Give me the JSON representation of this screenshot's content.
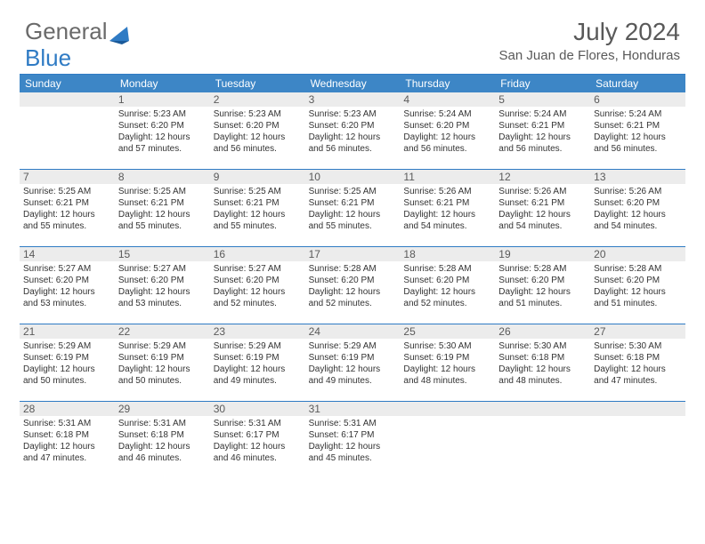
{
  "logo": {
    "text1": "General",
    "text2": "Blue"
  },
  "title": "July 2024",
  "location": "San Juan de Flores, Honduras",
  "colors": {
    "header_bg": "#3d86c6",
    "border": "#2f7bc4",
    "daynum_bg": "#ececec",
    "text_gray": "#595959"
  },
  "weekdays": [
    "Sunday",
    "Monday",
    "Tuesday",
    "Wednesday",
    "Thursday",
    "Friday",
    "Saturday"
  ],
  "weeks": [
    [
      null,
      {
        "n": "1",
        "sr": "5:23 AM",
        "ss": "6:20 PM",
        "dl": "12 hours and 57 minutes."
      },
      {
        "n": "2",
        "sr": "5:23 AM",
        "ss": "6:20 PM",
        "dl": "12 hours and 56 minutes."
      },
      {
        "n": "3",
        "sr": "5:23 AM",
        "ss": "6:20 PM",
        "dl": "12 hours and 56 minutes."
      },
      {
        "n": "4",
        "sr": "5:24 AM",
        "ss": "6:20 PM",
        "dl": "12 hours and 56 minutes."
      },
      {
        "n": "5",
        "sr": "5:24 AM",
        "ss": "6:21 PM",
        "dl": "12 hours and 56 minutes."
      },
      {
        "n": "6",
        "sr": "5:24 AM",
        "ss": "6:21 PM",
        "dl": "12 hours and 56 minutes."
      }
    ],
    [
      {
        "n": "7",
        "sr": "5:25 AM",
        "ss": "6:21 PM",
        "dl": "12 hours and 55 minutes."
      },
      {
        "n": "8",
        "sr": "5:25 AM",
        "ss": "6:21 PM",
        "dl": "12 hours and 55 minutes."
      },
      {
        "n": "9",
        "sr": "5:25 AM",
        "ss": "6:21 PM",
        "dl": "12 hours and 55 minutes."
      },
      {
        "n": "10",
        "sr": "5:25 AM",
        "ss": "6:21 PM",
        "dl": "12 hours and 55 minutes."
      },
      {
        "n": "11",
        "sr": "5:26 AM",
        "ss": "6:21 PM",
        "dl": "12 hours and 54 minutes."
      },
      {
        "n": "12",
        "sr": "5:26 AM",
        "ss": "6:21 PM",
        "dl": "12 hours and 54 minutes."
      },
      {
        "n": "13",
        "sr": "5:26 AM",
        "ss": "6:20 PM",
        "dl": "12 hours and 54 minutes."
      }
    ],
    [
      {
        "n": "14",
        "sr": "5:27 AM",
        "ss": "6:20 PM",
        "dl": "12 hours and 53 minutes."
      },
      {
        "n": "15",
        "sr": "5:27 AM",
        "ss": "6:20 PM",
        "dl": "12 hours and 53 minutes."
      },
      {
        "n": "16",
        "sr": "5:27 AM",
        "ss": "6:20 PM",
        "dl": "12 hours and 52 minutes."
      },
      {
        "n": "17",
        "sr": "5:28 AM",
        "ss": "6:20 PM",
        "dl": "12 hours and 52 minutes."
      },
      {
        "n": "18",
        "sr": "5:28 AM",
        "ss": "6:20 PM",
        "dl": "12 hours and 52 minutes."
      },
      {
        "n": "19",
        "sr": "5:28 AM",
        "ss": "6:20 PM",
        "dl": "12 hours and 51 minutes."
      },
      {
        "n": "20",
        "sr": "5:28 AM",
        "ss": "6:20 PM",
        "dl": "12 hours and 51 minutes."
      }
    ],
    [
      {
        "n": "21",
        "sr": "5:29 AM",
        "ss": "6:19 PM",
        "dl": "12 hours and 50 minutes."
      },
      {
        "n": "22",
        "sr": "5:29 AM",
        "ss": "6:19 PM",
        "dl": "12 hours and 50 minutes."
      },
      {
        "n": "23",
        "sr": "5:29 AM",
        "ss": "6:19 PM",
        "dl": "12 hours and 49 minutes."
      },
      {
        "n": "24",
        "sr": "5:29 AM",
        "ss": "6:19 PM",
        "dl": "12 hours and 49 minutes."
      },
      {
        "n": "25",
        "sr": "5:30 AM",
        "ss": "6:19 PM",
        "dl": "12 hours and 48 minutes."
      },
      {
        "n": "26",
        "sr": "5:30 AM",
        "ss": "6:18 PM",
        "dl": "12 hours and 48 minutes."
      },
      {
        "n": "27",
        "sr": "5:30 AM",
        "ss": "6:18 PM",
        "dl": "12 hours and 47 minutes."
      }
    ],
    [
      {
        "n": "28",
        "sr": "5:31 AM",
        "ss": "6:18 PM",
        "dl": "12 hours and 47 minutes."
      },
      {
        "n": "29",
        "sr": "5:31 AM",
        "ss": "6:18 PM",
        "dl": "12 hours and 46 minutes."
      },
      {
        "n": "30",
        "sr": "5:31 AM",
        "ss": "6:17 PM",
        "dl": "12 hours and 46 minutes."
      },
      {
        "n": "31",
        "sr": "5:31 AM",
        "ss": "6:17 PM",
        "dl": "12 hours and 45 minutes."
      },
      null,
      null,
      null
    ]
  ],
  "labels": {
    "sunrise": "Sunrise:",
    "sunset": "Sunset:",
    "daylight": "Daylight:"
  }
}
